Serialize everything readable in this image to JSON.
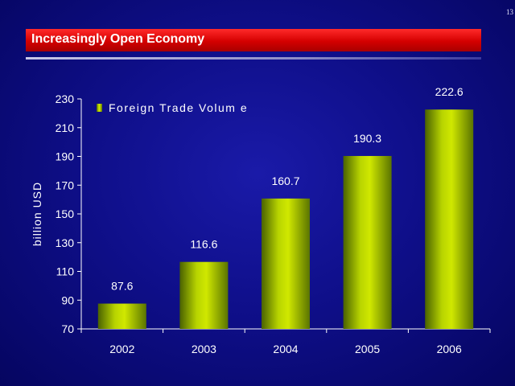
{
  "page_number": "13",
  "slide_title": "Increasingly Open Economy",
  "chart_data": {
    "type": "bar",
    "categories": [
      "2002",
      "2003",
      "2004",
      "2005",
      "2006"
    ],
    "series": [
      {
        "name": "Foreign Trade Volum e",
        "values": [
          87.6,
          116.6,
          160.7,
          190.3,
          222.6
        ]
      }
    ],
    "data_labels": [
      "87.6",
      "116.6",
      "160.7",
      "190.3",
      "222.6"
    ],
    "xlabel": "",
    "ylabel": "billion USD",
    "ylim": [
      70,
      230
    ],
    "yticks": [
      "70",
      "90",
      "110",
      "130",
      "150",
      "170",
      "190",
      "210",
      "230"
    ],
    "grid": false,
    "legend_position": "top-left",
    "colors": {
      "bar_light": "#c8e000",
      "bar_dark": "#4a6200",
      "axis": "#ffffff"
    }
  }
}
